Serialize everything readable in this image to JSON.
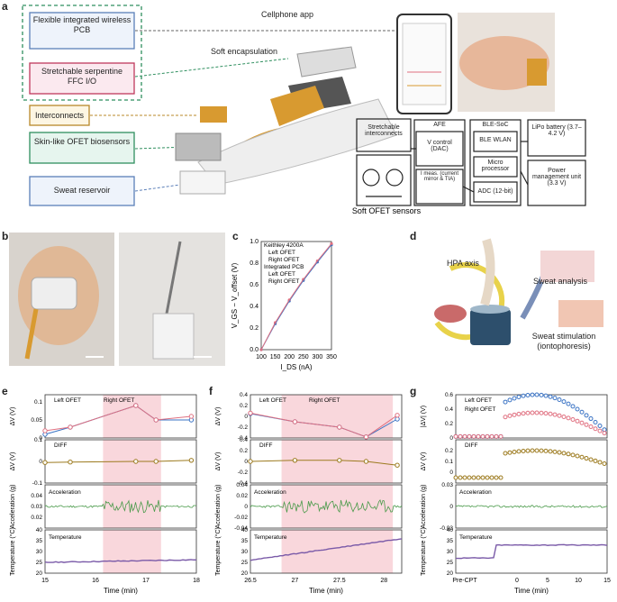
{
  "panel_labels": {
    "a": "a",
    "b": "b",
    "c": "c",
    "d": "d",
    "e": "e",
    "f": "f",
    "g": "g"
  },
  "panel_a": {
    "boxes": [
      "Flexible integrated wireless PCB",
      "Stretchable serpentine FFC I/O",
      "Interconnects",
      "Skin-like OFET biosensors",
      "Sweat reservoir"
    ],
    "cellphone_app": "Cellphone app",
    "soft_encapsulation": "Soft encapsulation",
    "block": {
      "stretchable_interconnects": "Stretchable interconnects",
      "afe": "AFE",
      "vgs_control": "V control (DAC)",
      "ids_meas": "I meas. (current mirror & TIA)",
      "ble_soc": "BLE-SoC",
      "ble_wlan": "BLE WLAN",
      "micro": "Micro processor",
      "adc": "ADC (12-bit)",
      "lipo": "LiPo battery (3.7–4.2 V)",
      "power": "Power management unit (3.3 V)",
      "soft_ofet": "Soft OFET sensors"
    },
    "colors": {
      "pcb": "#5b7fb8",
      "ffc": "#c0395c",
      "inter": "#b8882a",
      "ofet": "#2f8f5f",
      "reservoir": "#5b7fb8"
    }
  },
  "panel_d": {
    "hpa": "HPA axis",
    "sweat_analysis": "Sweat analysis",
    "sweat_stim": "Sweat stimulation (iontophoresis)"
  },
  "chart_data": [
    {
      "panel": "c",
      "type": "scatter",
      "legend_title_1": "Keithley 4200A",
      "legend_title_2": "Integrated PCB",
      "xlabel": "I_DS (nA)",
      "ylabel": "V_GS − V_offset (V)",
      "xlim": [
        100,
        350
      ],
      "ylim": [
        0,
        1
      ],
      "xticks": [
        100,
        150,
        200,
        250,
        300,
        350
      ],
      "yticks": [
        0,
        0.2,
        0.4,
        0.6,
        0.8,
        1.0
      ],
      "series": [
        {
          "name": "Left OFET",
          "x": [
            100,
            150,
            200,
            250,
            300,
            350
          ],
          "y": [
            0.0,
            0.24,
            0.45,
            0.64,
            0.81,
            0.97
          ],
          "color": "#3a73c4"
        },
        {
          "name": "Right OFET",
          "x": [
            100,
            150,
            200,
            250,
            300,
            350
          ],
          "y": [
            0.0,
            0.25,
            0.46,
            0.65,
            0.82,
            0.98
          ],
          "color": "#e07080"
        },
        {
          "name": "Left OFET",
          "x": [
            100,
            150,
            200,
            250,
            300,
            350
          ],
          "y": [
            0.0,
            0.24,
            0.45,
            0.64,
            0.81,
            0.97
          ],
          "color": "#3a73c4"
        },
        {
          "name": "Right OFET",
          "x": [
            100,
            150,
            200,
            250,
            300,
            350
          ],
          "y": [
            0.0,
            0.25,
            0.46,
            0.65,
            0.82,
            0.98
          ],
          "color": "#e07080"
        }
      ]
    },
    {
      "panel": "e",
      "type": "line",
      "xlabel": "Time (min)",
      "xlim": [
        15,
        18
      ],
      "xticks": [
        15,
        16,
        17,
        18
      ],
      "highlight": [
        16.15,
        17.3
      ],
      "subplots": [
        {
          "ylabel": "ΔV (V)",
          "ylim": [
            0,
            0.12
          ],
          "yticks": [
            0,
            0.05,
            0.1
          ],
          "series": [
            {
              "name": "Left OFET",
              "x": [
                15,
                15.5,
                16.8,
                17.2,
                17.9
              ],
              "y": [
                0.01,
                0.03,
                0.09,
                0.05,
                0.05
              ],
              "color": "#3a73c4"
            },
            {
              "name": "Right OFET",
              "x": [
                15,
                15.5,
                16.8,
                17.2,
                17.9
              ],
              "y": [
                0.02,
                0.03,
                0.09,
                0.05,
                0.06
              ],
              "color": "#e07080"
            }
          ]
        },
        {
          "ylabel": "ΔV (V)",
          "ylim": [
            -0.1,
            0.1
          ],
          "yticks": [
            -0.1,
            0,
            0.1
          ],
          "series": [
            {
              "name": "DIFF",
              "x": [
                15,
                15.5,
                16.8,
                17.2,
                17.9
              ],
              "y": [
                -0.005,
                -0.003,
                0.0,
                0.0,
                0.005
              ],
              "color": "#9c7a1e"
            }
          ]
        },
        {
          "ylabel": "Acceleration (g)",
          "ylim": [
            0.01,
            0.05
          ],
          "yticks": [
            0.02,
            0.03,
            0.04
          ],
          "label": "Acceleration",
          "series": [
            {
              "name": "Acceleration",
              "color": "#4a9a4a"
            }
          ]
        },
        {
          "ylabel": "Temperature (°C)",
          "ylim": [
            20,
            40
          ],
          "yticks": [
            20,
            25,
            30,
            35,
            40
          ],
          "label": "Temperature",
          "series": [
            {
              "name": "Temperature",
              "color": "#7a5aa8"
            }
          ]
        }
      ]
    },
    {
      "panel": "f",
      "type": "line",
      "xlabel": "Time (min)",
      "xlim": [
        26.5,
        28.2
      ],
      "xticks": [
        26.5,
        27,
        27.5,
        28
      ],
      "highlight": [
        26.85,
        28.1
      ],
      "subplots": [
        {
          "ylabel": "ΔV (V)",
          "ylim": [
            -0.4,
            0.4
          ],
          "yticks": [
            -0.4,
            -0.2,
            0,
            0.2,
            0.4
          ],
          "series": [
            {
              "name": "Left OFET",
              "x": [
                26.5,
                27,
                27.5,
                27.8,
                28.15
              ],
              "y": [
                0.05,
                -0.1,
                -0.2,
                -0.38,
                -0.05
              ],
              "color": "#3a73c4"
            },
            {
              "name": "Right OFET",
              "x": [
                26.5,
                27,
                27.5,
                27.8,
                28.15
              ],
              "y": [
                0.06,
                -0.1,
                -0.2,
                -0.38,
                0.02
              ],
              "color": "#e07080"
            }
          ]
        },
        {
          "ylabel": "ΔV (V)",
          "ylim": [
            -0.4,
            0.4
          ],
          "yticks": [
            -0.4,
            -0.2,
            0,
            0.2,
            0.4
          ],
          "series": [
            {
              "name": "DIFF",
              "x": [
                26.5,
                27,
                27.5,
                27.8,
                28.15
              ],
              "y": [
                0.0,
                0.02,
                0.02,
                0.0,
                -0.07
              ],
              "color": "#9c7a1e"
            }
          ]
        },
        {
          "ylabel": "Acceleration (g)",
          "ylim": [
            -0.04,
            0.04
          ],
          "yticks": [
            -0.04,
            -0.02,
            0,
            0.02,
            0.04
          ],
          "label": "Acceleration",
          "series": [
            {
              "name": "Acceleration",
              "color": "#4a9a4a"
            }
          ]
        },
        {
          "ylabel": "Temperature (°C)",
          "ylim": [
            20,
            40
          ],
          "yticks": [
            20,
            25,
            30,
            35,
            40
          ],
          "label": "Temperature",
          "series": [
            {
              "name": "Temperature",
              "color": "#7a5aa8"
            }
          ]
        }
      ]
    },
    {
      "panel": "g",
      "type": "line",
      "xlabel": "Time (min)",
      "xticks": [
        "Pre-CPT",
        "0",
        "5",
        "10",
        "15"
      ],
      "subplots": [
        {
          "ylabel": "|ΔV| (V)",
          "ylim": [
            0,
            0.6
          ],
          "yticks": [
            0,
            0.2,
            0.4,
            0.6
          ],
          "series": [
            {
              "name": "Left OFET",
              "color": "#3a73c4"
            },
            {
              "name": "Right OFET",
              "color": "#e07080"
            }
          ]
        },
        {
          "ylabel": "ΔV (V)",
          "ylim": [
            -0.1,
            0.3
          ],
          "yticks": [
            0,
            0.1,
            0.2
          ],
          "series": [
            {
              "name": "DIFF",
              "color": "#9c7a1e"
            }
          ]
        },
        {
          "ylabel": "Acceleration (g)",
          "ylim": [
            -0.03,
            0.03
          ],
          "yticks": [
            -0.03,
            0,
            0.03
          ],
          "label": "Acceleration",
          "series": [
            {
              "name": "Acceleration",
              "color": "#4a9a4a"
            }
          ]
        },
        {
          "ylabel": "Temperature (°C)",
          "ylim": [
            20,
            40
          ],
          "yticks": [
            20,
            25,
            30,
            35,
            40
          ],
          "label": "Temperature",
          "series": [
            {
              "name": "Temperature",
              "color": "#7a5aa8"
            }
          ]
        }
      ]
    }
  ]
}
